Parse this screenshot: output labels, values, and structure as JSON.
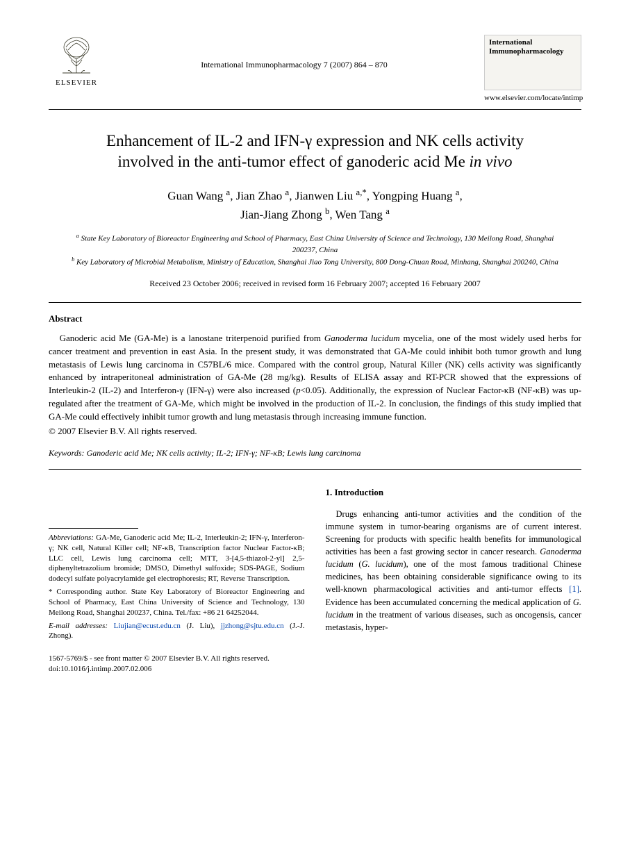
{
  "publisher": {
    "name": "ELSEVIER",
    "logo_color": "#3a3a2a"
  },
  "header": {
    "citation": "International Immunopharmacology 7 (2007) 864 – 870",
    "journal_name": "International\nImmunopharmacology",
    "journal_url": "www.elsevier.com/locate/intimp"
  },
  "article": {
    "title_line1": "Enhancement of IL-2 and IFN-γ expression and NK cells activity",
    "title_line2_pre": "involved in the anti-tumor effect of ganoderic acid Me ",
    "title_line2_ital": "in vivo",
    "authors_html": "Guan Wang <span class='sup'>a</span>, Jian Zhao <span class='sup'>a</span>, Jianwen Liu <span class='sup'>a,*</span>, Yongping Huang <span class='sup'>a</span>,<br>Jian-Jiang Zhong <span class='sup'>b</span>, Wen Tang <span class='sup'>a</span>",
    "affil_a": "State Key Laboratory of Bioreactor Engineering and School of Pharmacy, East China University of Science and Technology, 130 Meilong Road, Shanghai 200237, China",
    "affil_b": "Key Laboratory of Microbial Metabolism, Ministry of Education, Shanghai Jiao Tong University, 800 Dong-Chuan Road, Minhang, Shanghai 200240, China",
    "dates": "Received 23 October 2006; received in revised form 16 February 2007; accepted 16 February 2007"
  },
  "abstract": {
    "heading": "Abstract",
    "body": "Ganoderic acid Me (GA-Me) is a lanostane triterpenoid purified from <em>Ganoderma lucidum</em> mycelia, one of the most widely used herbs for cancer treatment and prevention in east Asia. In the present study, it was demonstrated that GA-Me could inhibit both tumor growth and lung metastasis of Lewis lung carcinoma in C57BL/6 mice. Compared with the control group, Natural Killer (NK) cells activity was significantly enhanced by intraperitoneal administration of GA-Me (28 mg/kg). Results of ELISA assay and RT-PCR showed that the expressions of Interleukin-2 (IL-2) and Interferon-γ (IFN-γ) were also increased (<em>p</em><0.05). Additionally, the expression of Nuclear Factor-κB (NF-κB) was up-regulated after the treatment of GA-Me, which might be involved in the production of IL-2. In conclusion, the findings of this study implied that GA-Me could effectively inhibit tumor growth and lung metastasis through increasing immune function.",
    "copyright": "© 2007 Elsevier B.V. All rights reserved.",
    "keywords_label": "Keywords:",
    "keywords": "Ganoderic acid Me; NK cells activity; IL-2; IFN-γ; NF-κB; Lewis lung carcinoma"
  },
  "footnotes": {
    "abbrev_label": "Abbreviations:",
    "abbrev_text": "GA-Me, Ganoderic acid Me; IL-2, Interleukin-2; IFN-γ, Interferon-γ; NK cell, Natural Killer cell; NF-κB, Transcription factor Nuclear Factor-κB; LLC cell, Lewis lung carcinoma cell; MTT, 3-[4,5-thiazol-2-yl] 2,5-diphenyltetrazolium bromide; DMSO, Dimethyl sulfoxide; SDS-PAGE, Sodium dodecyl sulfate polyacrylamide gel electrophoresis; RT, Reverse Transcription.",
    "corr_label": "* Corresponding author.",
    "corr_text": "State Key Laboratory of Bioreactor Engineering and School of Pharmacy, East China University of Science and Technology, 130 Meilong Road, Shanghai 200237, China. Tel./fax: +86 21 64252044.",
    "email_label": "E-mail addresses:",
    "email1": "Liujian@ecust.edu.cn",
    "email1_who": " (J. Liu),",
    "email2": "jjzhong@sjtu.edu.cn",
    "email2_who": " (J.-J. Zhong)."
  },
  "intro": {
    "heading": "1. Introduction",
    "para1": "Drugs enhancing anti-tumor activities and the condition of the immune system in tumor-bearing organisms are of current interest. Screening for products with specific health benefits for immunological activities has been a fast growing sector in cancer research. <em>Ganoderma lucidum</em> (<em>G. lucidum</em>), one of the most famous traditional Chinese medicines, has been obtaining considerable significance owing to its well-known pharmacological activities and anti-tumor effects <span class='ref-link'>[1]</span>. Evidence has been accumulated concerning the medical application of <em>G. lucidum</em> in the treatment of various diseases, such as oncogensis, cancer metastasis, hyper-"
  },
  "bottom": {
    "issn": "1567-5769/$ - see front matter © 2007 Elsevier B.V. All rights reserved.",
    "doi": "doi:10.1016/j.intimp.2007.02.006"
  },
  "colors": {
    "text": "#000000",
    "link": "#0645ad",
    "background": "#ffffff",
    "journal_box_bg": "#f5f4f0",
    "journal_box_border": "#cccccc"
  },
  "typography": {
    "body_fontsize_pt": 10,
    "title_fontsize_pt": 17,
    "authors_fontsize_pt": 13,
    "affil_fontsize_pt": 8,
    "font_family": "Times New Roman"
  }
}
